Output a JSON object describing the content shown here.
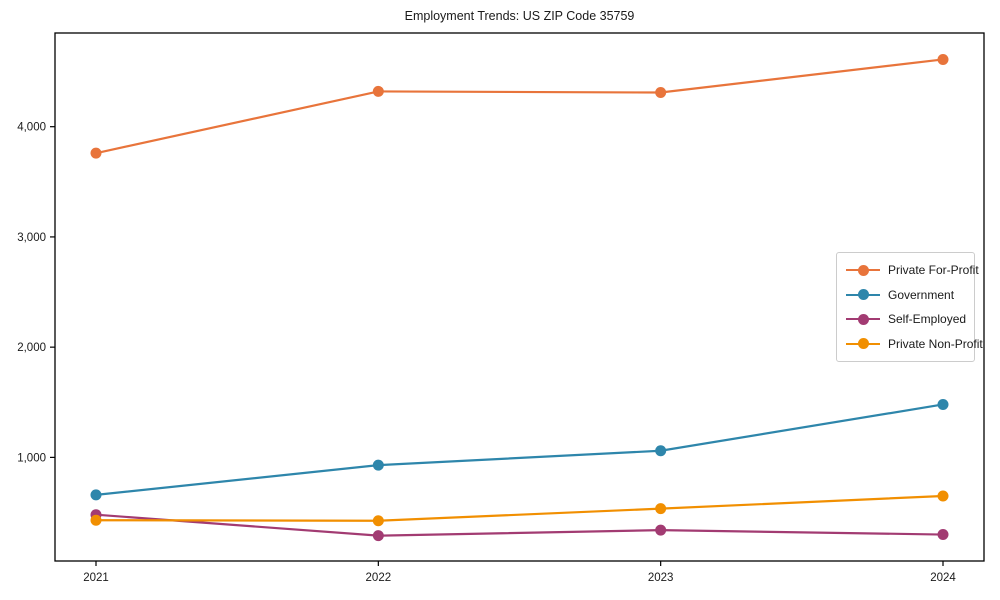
{
  "chart_data": {
    "type": "line",
    "title": "Employment Trends: US ZIP Code 35759",
    "categories": [
      "2021",
      "2022",
      "2023",
      "2024"
    ],
    "series": [
      {
        "name": "Private For-Profit",
        "color": "#E8743B",
        "values": [
          3760,
          4320,
          4310,
          4610
        ]
      },
      {
        "name": "Government",
        "color": "#2E86AB",
        "values": [
          660,
          930,
          1060,
          1480
        ]
      },
      {
        "name": "Self-Employed",
        "color": "#A23B72",
        "values": [
          480,
          290,
          340,
          300
        ]
      },
      {
        "name": "Private Non-Profit",
        "color": "#F18F01",
        "values": [
          430,
          425,
          535,
          650
        ]
      }
    ],
    "yticks": [
      1000,
      2000,
      3000,
      4000
    ],
    "ytick_labels": [
      "1,000",
      "2,000",
      "3,000",
      "4,000"
    ],
    "ylim": [
      60,
      4850
    ],
    "grid": false,
    "legend_position": "middle-right",
    "axis_color": "#000000",
    "text_color": "#1a1a1a"
  }
}
